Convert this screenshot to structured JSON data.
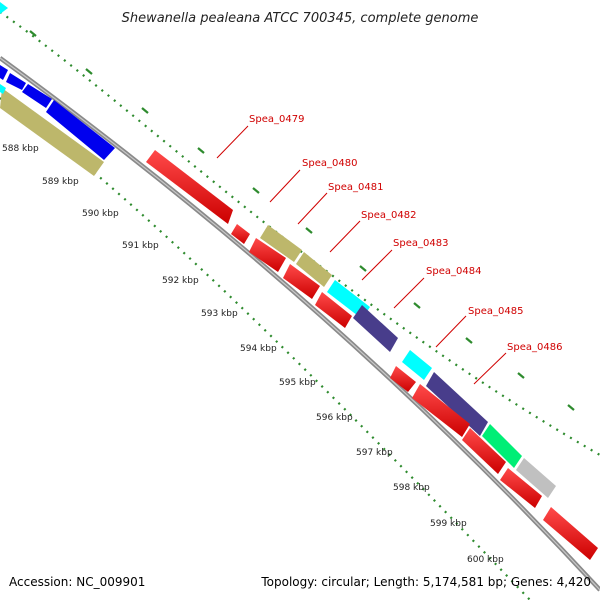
{
  "title": "Shewanella pealeana ATCC 700345, complete genome",
  "accession_text": "Accession: NC_009901",
  "summary_text": "Topology: circular; Length: 5,174,581 bp; Genes: 4,420",
  "tick_labels": [
    "588 kbp",
    "589 kbp",
    "590 kbp",
    "591 kbp",
    "592 kbp",
    "593 kbp",
    "594 kbp",
    "595 kbp",
    "596 kbp",
    "597 kbp",
    "598 kbp",
    "599 kbp",
    "600 kbp"
  ],
  "gene_labels": [
    "Spea_0479",
    "Spea_0480",
    "Spea_0481",
    "Spea_0482",
    "Spea_0483",
    "Spea_0484",
    "Spea_0485",
    "Spea_0486"
  ],
  "colors": {
    "forward_gene": "#ff0000",
    "reverse_gene": "#ff0000",
    "olive": "#bdb76b",
    "blue": "#0000ee",
    "cyan": "#00ffff",
    "dark_slate": "#483d8b",
    "spring_green": "#00ee76",
    "gray_gene": "#c0c0c0",
    "backbone": "#808080",
    "dotted_ring": "#2e8b2e",
    "label_red": "#d00000"
  }
}
